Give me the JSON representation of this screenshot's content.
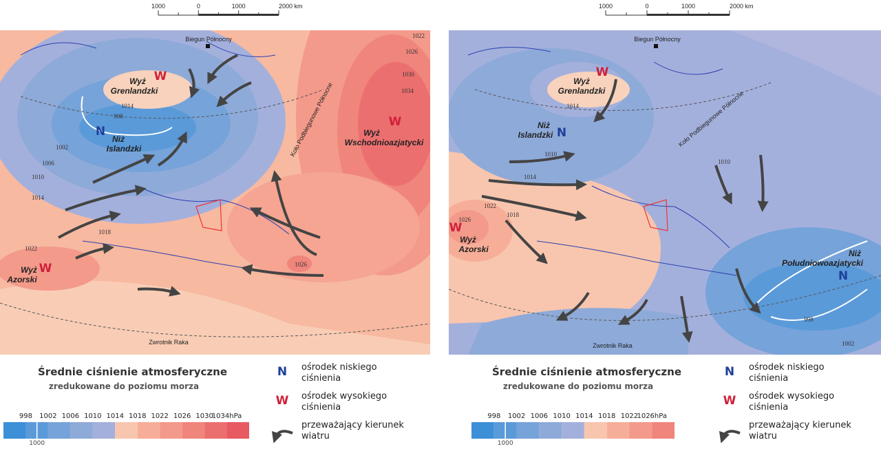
{
  "panels": [
    {
      "scale_bar": [
        "1000",
        "0",
        "1000",
        "2000 km"
      ],
      "north_pole": "Biegun Północny",
      "arctic_circle": "Koło Podbiegunowe Północne",
      "tropic": "Zwrotnik Raka",
      "centers": [
        {
          "symbol": "W",
          "name": [
            "Wyż",
            "Grenlandzki"
          ]
        },
        {
          "symbol": "N",
          "name": [
            "Niż",
            "Islandzki"
          ]
        },
        {
          "symbol": "W",
          "name": [
            "Wyż",
            "Wschodnioazjatycki"
          ]
        },
        {
          "symbol": "W",
          "name": [
            "Wyż",
            "Azorski"
          ]
        }
      ],
      "isobars": [
        "1022",
        "1026",
        "1030",
        "1034",
        "1014",
        "998",
        "1002",
        "1006",
        "1010",
        "1014",
        "1018",
        "1022",
        "1026"
      ],
      "legend": {
        "title": "Średnie ciśnienie atmosferyczne",
        "subtitle": "zredukowane do poziomu morza",
        "items": [
          {
            "symbol": "N",
            "text": [
              "ośrodek niskiego",
              "ciśnienia"
            ]
          },
          {
            "symbol": "W",
            "text": [
              "ośrodek wysokiego",
              "ciśnienia"
            ]
          },
          {
            "text": [
              "przeważający kierunek",
              "wiatru"
            ]
          }
        ],
        "scale": {
          "labels": [
            "998",
            "1002",
            "1006",
            "1010",
            "1014",
            "1018",
            "1022",
            "1026",
            "1030",
            "1034hPa"
          ],
          "colors": [
            "#3d8fd8",
            "#5a9ad9",
            "#76a3d9",
            "#8eaad9",
            "#a4b0dc",
            "#f8c6ae",
            "#f7ae98",
            "#f39a8a",
            "#f0857c",
            "#ec6f6f",
            "#e85a62"
          ],
          "marker": "1000"
        }
      }
    },
    {
      "scale_bar": [
        "1000",
        "0",
        "1000",
        "2000 km"
      ],
      "north_pole": "Biegun Północny",
      "arctic_circle": "Koło Podbiegunowe Północne",
      "tropic": "Zwrotnik Raka",
      "centers": [
        {
          "symbol": "W",
          "name": [
            "Wyż",
            "Grenlandzki"
          ]
        },
        {
          "symbol": "N",
          "name": [
            "Niż",
            "Islandzki"
          ]
        },
        {
          "symbol": "N",
          "name": [
            "Niż",
            "Południowoazjatycki"
          ]
        },
        {
          "symbol": "W",
          "name": [
            "Wyż",
            "Azorski"
          ]
        }
      ],
      "isobars": [
        "1014",
        "1010",
        "1014",
        "1022",
        "1018",
        "1026",
        "1010",
        "998",
        "1002"
      ],
      "legend": {
        "title": "Średnie ciśnienie atmosferyczne",
        "subtitle": "zredukowane do poziomu morza",
        "items": [
          {
            "symbol": "N",
            "text": [
              "ośrodek niskiego",
              "ciśnienia"
            ]
          },
          {
            "symbol": "W",
            "text": [
              "ośrodek wysokiego",
              "ciśnienia"
            ]
          },
          {
            "text": [
              "przeważający kierunek",
              "wiatru"
            ]
          }
        ],
        "scale": {
          "labels": [
            "998",
            "1002",
            "1006",
            "1010",
            "1014",
            "1018",
            "1022",
            "1026hPa"
          ],
          "colors": [
            "#3d8fd8",
            "#5a9ad9",
            "#76a3d9",
            "#8eaad9",
            "#a4b0dc",
            "#f8c6ae",
            "#f7ae98",
            "#f39a8a",
            "#f0857c"
          ],
          "marker": "1000"
        }
      }
    }
  ]
}
